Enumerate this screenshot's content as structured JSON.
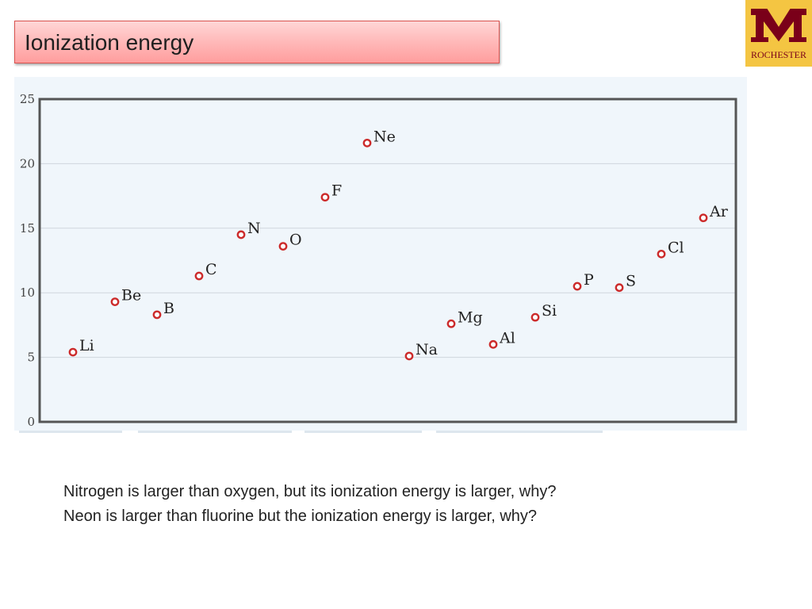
{
  "slide": {
    "title": "Ionization energy",
    "questions": [
      "Nitrogen is larger than oxygen, but its ionization energy is larger, why?",
      "Neon is larger than fluorine but the ionization energy is larger, why?"
    ]
  },
  "logo": {
    "caption": "ROCHESTER",
    "colors": {
      "maroon": "#7a0019",
      "gold": "#f4c542"
    }
  },
  "colors": {
    "point_stroke": "#cc2b2b",
    "grid": "#cfd6dd",
    "axis": "#555555",
    "plot_bg": "#f0f6fb"
  },
  "chart_data": {
    "type": "scatter",
    "xlabel": "",
    "ylabel": "",
    "ylim": [
      0,
      25
    ],
    "yticks": [
      0,
      5,
      10,
      15,
      20,
      25
    ],
    "grid": true,
    "points": [
      {
        "label": "Li",
        "value": 5.4
      },
      {
        "label": "Be",
        "value": 9.3
      },
      {
        "label": "B",
        "value": 8.3
      },
      {
        "label": "C",
        "value": 11.3
      },
      {
        "label": "N",
        "value": 14.5
      },
      {
        "label": "O",
        "value": 13.6
      },
      {
        "label": "F",
        "value": 17.4
      },
      {
        "label": "Ne",
        "value": 21.6
      },
      {
        "label": "Na",
        "value": 5.1
      },
      {
        "label": "Mg",
        "value": 7.6
      },
      {
        "label": "Al",
        "value": 6.0
      },
      {
        "label": "Si",
        "value": 8.1
      },
      {
        "label": "P",
        "value": 10.5
      },
      {
        "label": "S",
        "value": 10.4
      },
      {
        "label": "Cl",
        "value": 13.0
      },
      {
        "label": "Ar",
        "value": 15.8
      }
    ]
  }
}
